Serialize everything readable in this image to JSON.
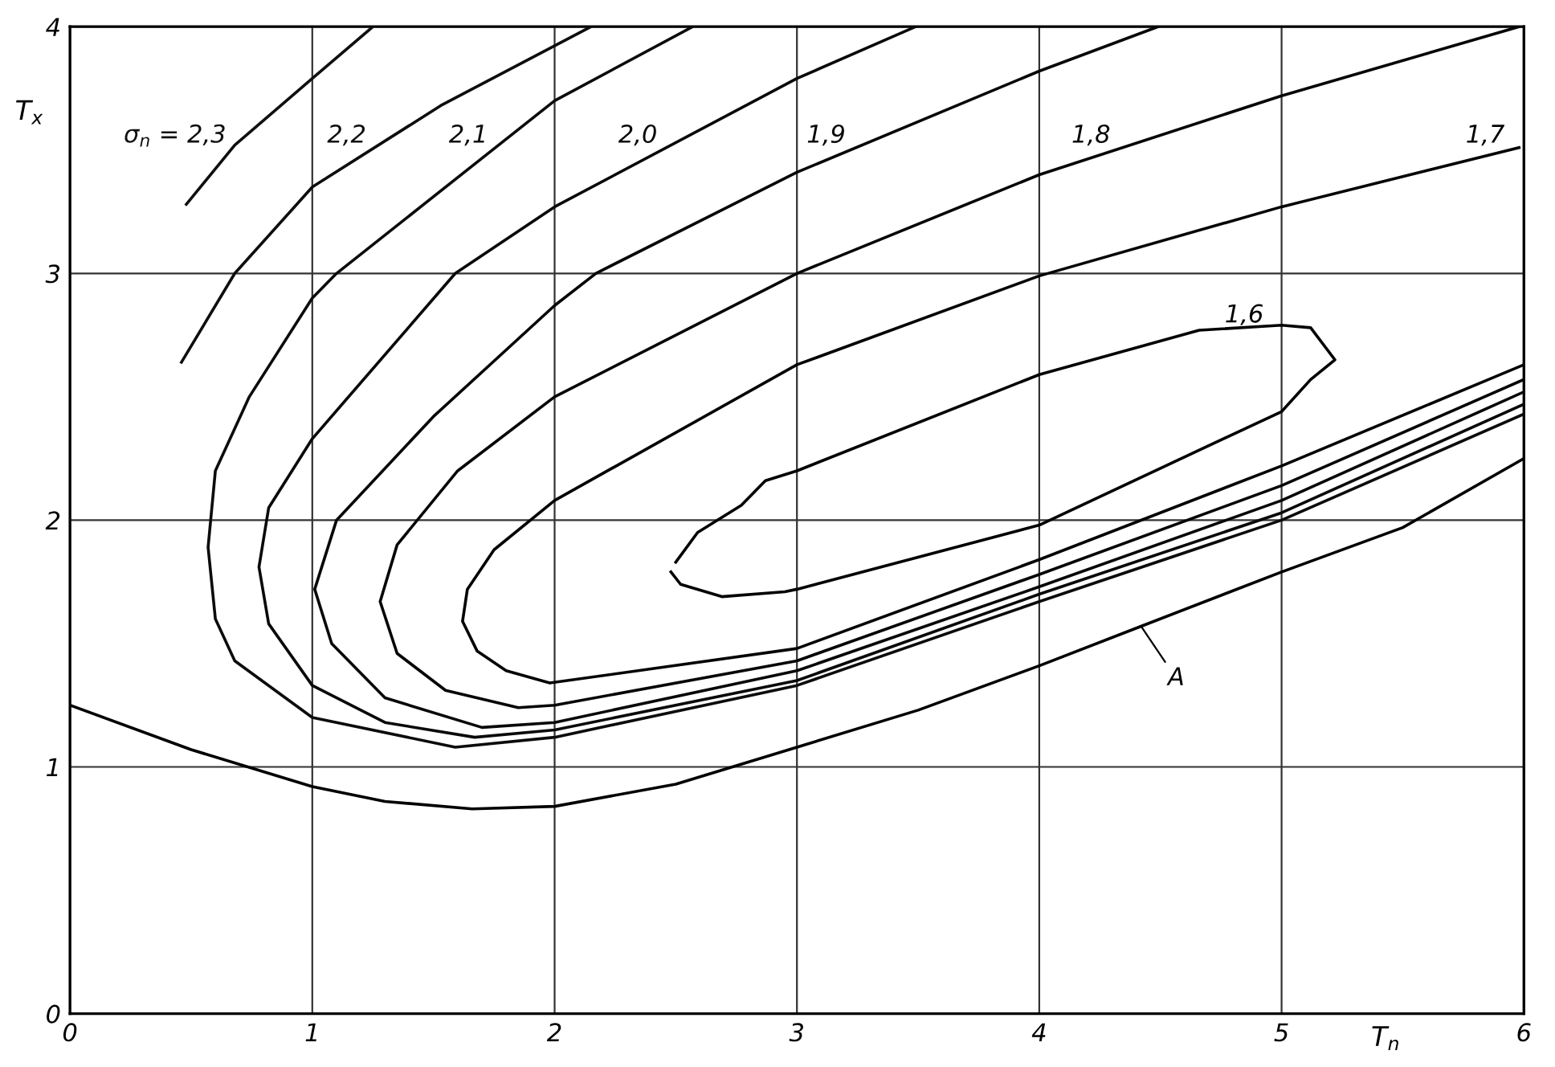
{
  "chart_data": {
    "type": "line",
    "xlabel": "T$_{n}$",
    "ylabel": "T$_{x}$",
    "xlim": [
      0,
      6
    ],
    "ylim": [
      0,
      4
    ],
    "xticks": [
      0,
      1,
      2,
      3,
      4,
      5,
      6
    ],
    "yticks": [
      0,
      1,
      2,
      3,
      4
    ],
    "grid": true,
    "marker": "none",
    "line_style": "solid",
    "series": [
      {
        "name": "σ$_{n}$ = 2,3",
        "color": "#101010",
        "x": [
          0.48,
          0.68,
          1.0,
          1.25
        ],
        "values": [
          3.28,
          3.52,
          3.79,
          4.0
        ]
      },
      {
        "name": "2,2",
        "color": "#0e0e0e",
        "x": [
          0.46,
          0.68,
          1.0,
          1.53,
          2.15
        ],
        "values": [
          2.64,
          3.0,
          3.35,
          3.68,
          4.0
        ]
      },
      {
        "name": "2,1",
        "color": "#0c0c0c",
        "x": [
          2.57,
          2.0,
          1.1,
          1.0,
          0.74,
          0.6,
          0.57,
          0.6,
          0.68,
          1.0,
          1.59,
          2.0,
          3.0,
          4.0,
          5.0,
          6.0
        ],
        "values": [
          4.0,
          3.7,
          3.0,
          2.9,
          2.5,
          2.2,
          1.89,
          1.6,
          1.43,
          1.2,
          1.08,
          1.12,
          1.33,
          1.67,
          2.0,
          2.43
        ]
      },
      {
        "name": "2,0",
        "color": "#0a0a0a",
        "x": [
          3.49,
          3.0,
          2.0,
          1.59,
          1.0,
          0.82,
          0.78,
          0.82,
          1.0,
          1.3,
          1.67,
          2.0,
          3.0,
          4.0,
          5.0,
          6.0
        ],
        "values": [
          4.0,
          3.79,
          3.27,
          3.0,
          2.33,
          2.05,
          1.81,
          1.58,
          1.33,
          1.18,
          1.12,
          1.15,
          1.35,
          1.7,
          2.03,
          2.47
        ]
      },
      {
        "name": "1,9",
        "color": "#080808",
        "x": [
          4.49,
          4.0,
          3.0,
          2.17,
          2.0,
          1.5,
          1.1,
          1.01,
          1.08,
          1.3,
          1.7,
          2.0,
          3.0,
          4.0,
          5.0,
          6.0
        ],
        "values": [
          4.0,
          3.82,
          3.41,
          3.0,
          2.87,
          2.42,
          2.0,
          1.72,
          1.5,
          1.28,
          1.16,
          1.18,
          1.39,
          1.73,
          2.08,
          2.52
        ]
      },
      {
        "name": "1,8",
        "color": "#060606",
        "x": [
          5.98,
          5.0,
          4.0,
          3.0,
          2.0,
          1.6,
          1.35,
          1.28,
          1.35,
          1.55,
          1.85,
          2.0,
          3.0,
          4.0,
          5.0,
          6.0
        ],
        "values": [
          4.0,
          3.72,
          3.4,
          3.0,
          2.5,
          2.2,
          1.9,
          1.67,
          1.46,
          1.31,
          1.24,
          1.25,
          1.43,
          1.78,
          2.14,
          2.57
        ]
      },
      {
        "name": "1,7",
        "color": "#040404",
        "x": [
          5.98,
          5.0,
          4.0,
          3.0,
          2.0,
          1.75,
          1.64,
          1.62,
          1.68,
          1.8,
          1.98,
          3.0,
          4.0,
          5.0,
          6.0
        ],
        "values": [
          3.51,
          3.27,
          2.99,
          2.63,
          2.08,
          1.88,
          1.72,
          1.59,
          1.47,
          1.39,
          1.34,
          1.48,
          1.84,
          2.22,
          2.63
        ]
      },
      {
        "name": "1,6",
        "color": "#020202",
        "x": [
          2.48,
          2.52,
          2.69,
          2.95,
          3.0,
          4.0,
          5.0,
          5.12,
          5.22,
          5.12,
          5.0,
          4.66,
          4.0,
          3.0,
          2.87,
          2.77,
          2.59,
          2.5
        ],
        "values": [
          1.79,
          1.74,
          1.69,
          1.71,
          1.72,
          1.98,
          2.44,
          2.57,
          2.65,
          2.78,
          2.79,
          2.77,
          2.59,
          2.2,
          2.16,
          2.06,
          1.95,
          1.83
        ]
      },
      {
        "name": "A",
        "color": "#000000",
        "x": [
          0,
          0.5,
          1.0,
          1.3,
          1.66,
          2.0,
          2.5,
          3.0,
          3.5,
          4.0,
          4.42,
          5.0,
          5.5,
          6.0
        ],
        "values": [
          1.25,
          1.07,
          0.92,
          0.86,
          0.83,
          0.84,
          0.93,
          1.08,
          1.23,
          1.41,
          1.57,
          1.79,
          1.97,
          2.25
        ]
      }
    ]
  }
}
